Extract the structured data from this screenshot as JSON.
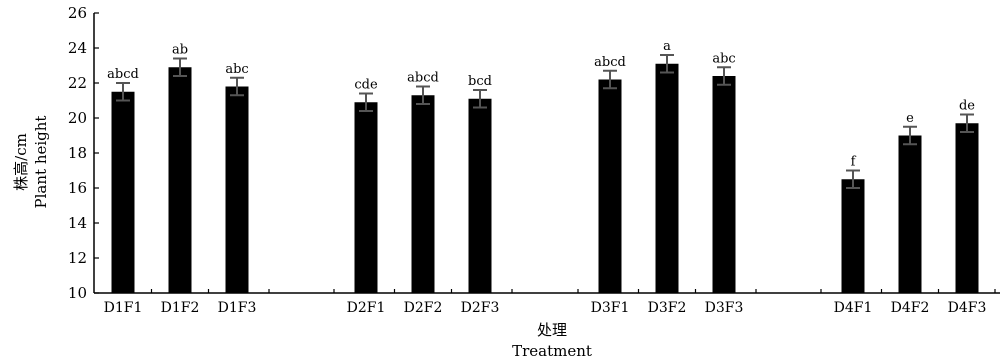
{
  "chart_data": {
    "type": "bar",
    "ylabel_cn": "株高/cm",
    "ylabel_en": "Plant height",
    "xlabel_cn": "处理",
    "xlabel_en": "Treatment",
    "ylim": [
      10,
      26
    ],
    "yticks": [
      10,
      12,
      14,
      16,
      18,
      20,
      22,
      24,
      26
    ],
    "bar_color": "#000000",
    "errorbar_color": "#555555",
    "grid": false,
    "bars": [
      {
        "category": "D1F1",
        "value": 21.5,
        "error": 0.5,
        "sig": "abcd",
        "group": 0,
        "slot": 0
      },
      {
        "category": "D1F2",
        "value": 22.9,
        "error": 0.5,
        "sig": "ab",
        "group": 0,
        "slot": 1
      },
      {
        "category": "D1F3",
        "value": 21.8,
        "error": 0.5,
        "sig": "abc",
        "group": 0,
        "slot": 2
      },
      {
        "category": "D2F1",
        "value": 20.9,
        "error": 0.5,
        "sig": "cde",
        "group": 1,
        "slot": 0
      },
      {
        "category": "D2F2",
        "value": 21.3,
        "error": 0.5,
        "sig": "abcd",
        "group": 1,
        "slot": 1
      },
      {
        "category": "D2F3",
        "value": 21.1,
        "error": 0.5,
        "sig": "bcd",
        "group": 1,
        "slot": 2
      },
      {
        "category": "D3F1",
        "value": 22.2,
        "error": 0.5,
        "sig": "abcd",
        "group": 2,
        "slot": 0
      },
      {
        "category": "D3F2",
        "value": 23.1,
        "error": 0.5,
        "sig": "a",
        "group": 2,
        "slot": 1
      },
      {
        "category": "D3F3",
        "value": 22.4,
        "error": 0.5,
        "sig": "abc",
        "group": 2,
        "slot": 2
      },
      {
        "category": "D4F1",
        "value": 16.5,
        "error": 0.5,
        "sig": "f",
        "group": 3,
        "slot": 0
      },
      {
        "category": "D4F2",
        "value": 19.0,
        "error": 0.5,
        "sig": "e",
        "group": 3,
        "slot": 1
      },
      {
        "category": "D4F3",
        "value": 19.7,
        "error": 0.5,
        "sig": "de",
        "group": 3,
        "slot": 2
      }
    ]
  }
}
